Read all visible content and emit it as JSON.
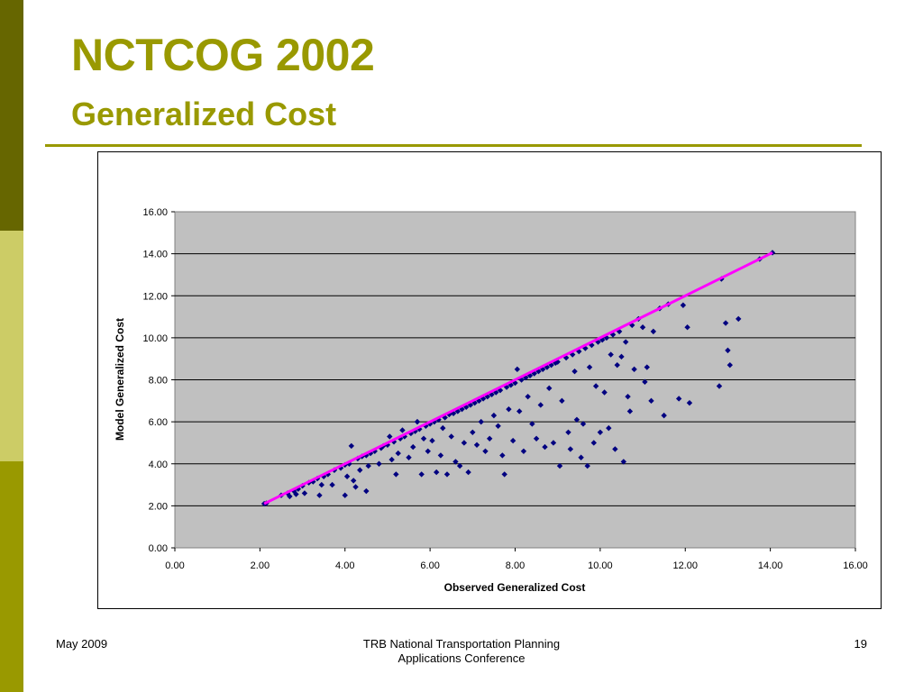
{
  "slide": {
    "title": "NCTCOG 2002",
    "subtitle": "Generalized Cost",
    "footer_left": "May 2009",
    "footer_center_line1": "TRB National Transportation Planning",
    "footer_center_line2": "Applications Conference",
    "page_number": "19"
  },
  "colors": {
    "accent": "#999900",
    "plot_background": "#c0c0c0",
    "marker": "#000080",
    "reference_line": "#ff00ff"
  },
  "chart_data": {
    "type": "scatter",
    "xlabel": "Observed Generalized Cost",
    "ylabel": "Model Generalized Cost",
    "xlim": [
      0,
      16
    ],
    "ylim": [
      0,
      16
    ],
    "xticks": [
      "0.00",
      "2.00",
      "4.00",
      "6.00",
      "8.00",
      "10.00",
      "12.00",
      "14.00",
      "16.00"
    ],
    "yticks": [
      "0.00",
      "2.00",
      "4.00",
      "6.00",
      "8.00",
      "10.00",
      "12.00",
      "14.00",
      "16.00"
    ],
    "grid": "horizontal",
    "legend": "none",
    "reference_line": {
      "x": [
        2.1,
        14.05
      ],
      "y": [
        2.1,
        14.05
      ]
    },
    "series": [
      {
        "marker": "diamond",
        "points": [
          [
            2.1,
            2.1
          ],
          [
            2.15,
            2.12
          ],
          [
            2.5,
            2.5
          ],
          [
            2.65,
            2.6
          ],
          [
            2.7,
            2.45
          ],
          [
            2.8,
            2.7
          ],
          [
            2.85,
            2.55
          ],
          [
            2.9,
            2.8
          ],
          [
            3.0,
            2.95
          ],
          [
            3.05,
            2.6
          ],
          [
            3.15,
            3.1
          ],
          [
            3.25,
            3.15
          ],
          [
            3.35,
            3.3
          ],
          [
            3.4,
            2.5
          ],
          [
            3.45,
            3.0
          ],
          [
            3.5,
            3.4
          ],
          [
            3.6,
            3.5
          ],
          [
            3.7,
            3.0
          ],
          [
            3.75,
            3.7
          ],
          [
            3.9,
            3.8
          ],
          [
            4.0,
            3.95
          ],
          [
            4.0,
            2.5
          ],
          [
            4.05,
            3.4
          ],
          [
            4.1,
            4.0
          ],
          [
            4.15,
            4.85
          ],
          [
            4.2,
            3.2
          ],
          [
            4.25,
            2.9
          ],
          [
            4.3,
            4.25
          ],
          [
            4.35,
            3.7
          ],
          [
            4.4,
            4.35
          ],
          [
            4.5,
            4.4
          ],
          [
            4.5,
            2.7
          ],
          [
            4.55,
            3.9
          ],
          [
            4.6,
            4.5
          ],
          [
            4.7,
            4.6
          ],
          [
            4.8,
            4.0
          ],
          [
            4.85,
            4.75
          ],
          [
            4.9,
            4.85
          ],
          [
            5.0,
            4.9
          ],
          [
            5.05,
            5.3
          ],
          [
            5.1,
            4.2
          ],
          [
            5.15,
            5.05
          ],
          [
            5.2,
            3.5
          ],
          [
            5.25,
            4.5
          ],
          [
            5.3,
            5.2
          ],
          [
            5.35,
            5.6
          ],
          [
            5.4,
            5.3
          ],
          [
            5.5,
            4.3
          ],
          [
            5.55,
            5.45
          ],
          [
            5.6,
            4.8
          ],
          [
            5.65,
            5.55
          ],
          [
            5.7,
            6.0
          ],
          [
            5.75,
            5.65
          ],
          [
            5.8,
            3.5
          ],
          [
            5.85,
            5.2
          ],
          [
            5.9,
            5.8
          ],
          [
            5.95,
            4.6
          ],
          [
            6.0,
            5.9
          ],
          [
            6.05,
            5.1
          ],
          [
            6.1,
            6.0
          ],
          [
            6.15,
            3.6
          ],
          [
            6.2,
            6.1
          ],
          [
            6.25,
            4.4
          ],
          [
            6.3,
            5.7
          ],
          [
            6.35,
            6.2
          ],
          [
            6.4,
            3.5
          ],
          [
            6.45,
            6.35
          ],
          [
            6.5,
            5.3
          ],
          [
            6.55,
            6.4
          ],
          [
            6.6,
            4.1
          ],
          [
            6.65,
            6.5
          ],
          [
            6.7,
            3.9
          ],
          [
            6.75,
            6.6
          ],
          [
            6.8,
            5.0
          ],
          [
            6.85,
            6.7
          ],
          [
            6.9,
            3.6
          ],
          [
            6.95,
            6.8
          ],
          [
            7.0,
            5.5
          ],
          [
            7.05,
            6.9
          ],
          [
            7.1,
            4.9
          ],
          [
            7.15,
            7.0
          ],
          [
            7.2,
            6.0
          ],
          [
            7.25,
            7.1
          ],
          [
            7.3,
            4.6
          ],
          [
            7.35,
            7.2
          ],
          [
            7.4,
            5.2
          ],
          [
            7.45,
            7.3
          ],
          [
            7.5,
            6.3
          ],
          [
            7.55,
            7.4
          ],
          [
            7.6,
            5.8
          ],
          [
            7.65,
            7.5
          ],
          [
            7.7,
            4.4
          ],
          [
            7.75,
            3.5
          ],
          [
            7.8,
            7.65
          ],
          [
            7.85,
            6.6
          ],
          [
            7.9,
            7.75
          ],
          [
            7.95,
            5.1
          ],
          [
            8.0,
            7.85
          ],
          [
            8.05,
            8.5
          ],
          [
            8.1,
            6.5
          ],
          [
            8.15,
            8.0
          ],
          [
            8.2,
            4.6
          ],
          [
            8.25,
            8.1
          ],
          [
            8.3,
            7.2
          ],
          [
            8.35,
            8.2
          ],
          [
            8.4,
            5.9
          ],
          [
            8.45,
            8.3
          ],
          [
            8.5,
            5.2
          ],
          [
            8.55,
            8.4
          ],
          [
            8.6,
            6.8
          ],
          [
            8.65,
            8.5
          ],
          [
            8.7,
            4.8
          ],
          [
            8.75,
            8.6
          ],
          [
            8.8,
            7.6
          ],
          [
            8.85,
            8.7
          ],
          [
            8.9,
            5.0
          ],
          [
            8.95,
            8.8
          ],
          [
            9.0,
            8.85
          ],
          [
            9.05,
            3.9
          ],
          [
            9.1,
            7.0
          ],
          [
            9.2,
            9.05
          ],
          [
            9.25,
            5.5
          ],
          [
            9.3,
            4.7
          ],
          [
            9.35,
            9.2
          ],
          [
            9.4,
            8.4
          ],
          [
            9.45,
            6.1
          ],
          [
            9.5,
            9.35
          ],
          [
            9.55,
            4.3
          ],
          [
            9.6,
            5.9
          ],
          [
            9.65,
            9.5
          ],
          [
            9.7,
            3.9
          ],
          [
            9.75,
            8.6
          ],
          [
            9.8,
            9.65
          ],
          [
            9.85,
            5.0
          ],
          [
            9.9,
            7.7
          ],
          [
            9.95,
            9.8
          ],
          [
            10.0,
            5.5
          ],
          [
            10.05,
            9.9
          ],
          [
            10.1,
            7.4
          ],
          [
            10.15,
            10.0
          ],
          [
            10.2,
            5.7
          ],
          [
            10.25,
            9.2
          ],
          [
            10.3,
            10.15
          ],
          [
            10.35,
            4.7
          ],
          [
            10.4,
            8.7
          ],
          [
            10.45,
            10.3
          ],
          [
            10.5,
            9.1
          ],
          [
            10.55,
            4.1
          ],
          [
            10.6,
            9.8
          ],
          [
            10.65,
            7.2
          ],
          [
            10.7,
            6.5
          ],
          [
            10.75,
            10.6
          ],
          [
            10.8,
            8.5
          ],
          [
            10.9,
            10.9
          ],
          [
            11.0,
            10.5
          ],
          [
            11.05,
            7.9
          ],
          [
            11.1,
            8.6
          ],
          [
            11.2,
            7.0
          ],
          [
            11.25,
            10.3
          ],
          [
            11.4,
            11.4
          ],
          [
            11.5,
            6.3
          ],
          [
            11.6,
            11.6
          ],
          [
            11.85,
            7.1
          ],
          [
            11.95,
            11.55
          ],
          [
            12.05,
            10.5
          ],
          [
            12.1,
            6.9
          ],
          [
            12.8,
            7.7
          ],
          [
            12.85,
            12.8
          ],
          [
            12.95,
            10.7
          ],
          [
            13.0,
            9.4
          ],
          [
            13.05,
            8.7
          ],
          [
            13.25,
            10.9
          ],
          [
            13.75,
            13.75
          ],
          [
            14.05,
            14.05
          ]
        ]
      }
    ]
  }
}
